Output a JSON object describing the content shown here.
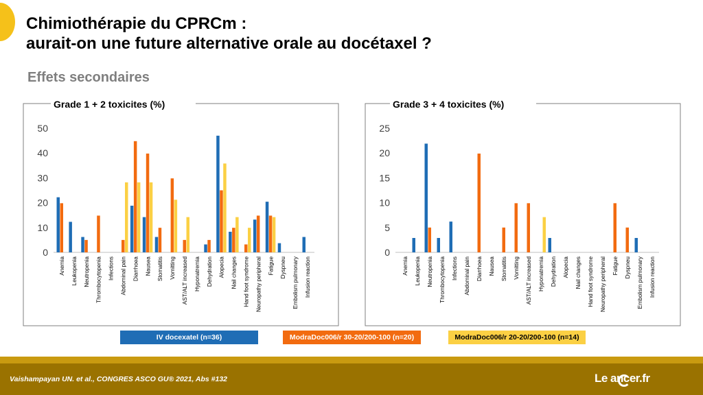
{
  "slide": {
    "title_line1": "Chimiothérapie du CPRCm :",
    "title_line2": "aurait-on une future alternative orale au docétaxel ?",
    "subtitle": "Effets secondaires",
    "citation": "Vaishampayan UN. et al., CONGRES ASCO GU® 2021, Abs #132",
    "logo": "Le   ancer.fr"
  },
  "legend": [
    {
      "label": "IV docexatel (n=36)",
      "color": "#1f6db5"
    },
    {
      "label": "ModraDoc006/r 30-20/200-100 (n=20)",
      "color": "#f26b10"
    },
    {
      "label": "ModraDoc006/r 20-20/200-100 (n=14)",
      "color": "#fbd044"
    }
  ],
  "chart_data": [
    {
      "type": "bar",
      "title": "Grade 1 + 2 toxicites (%)",
      "ylim": [
        0,
        50
      ],
      "yticks": [
        0,
        10,
        20,
        30,
        40,
        50
      ],
      "categories": [
        "Anemia",
        "Leukopenia",
        "Neutropenia",
        "Thrombocytopenia",
        "Infections",
        "Abdominal pain",
        "Diarrhoea",
        "Nausea",
        "Stomatitis",
        "Vomitting",
        "AST/ALT increased",
        "Hyponatremia",
        "Dehydration",
        "Alopecia",
        "Nail changes",
        "Hand foot syndrome",
        "Neuropathy peripheral",
        "Fatigue",
        "Dyspneu",
        "Embolism pulmonary",
        "Infusion reaction"
      ],
      "series": [
        {
          "name": "IV docexatel (n=36)",
          "color": "#1f6db5",
          "values": [
            22.2,
            12.3,
            6.2,
            0,
            0,
            0,
            18.8,
            14.2,
            6.2,
            0,
            0,
            0,
            3.2,
            47,
            8.3,
            0,
            13.2,
            20.4,
            3.7,
            0,
            6.2
          ]
        },
        {
          "name": "ModraDoc006/r 30-20/200-100 (n=20)",
          "color": "#f26b10",
          "values": [
            19.8,
            0,
            5,
            14.8,
            0,
            5,
            44.8,
            39.8,
            9.9,
            29.8,
            5,
            0,
            5,
            25,
            9.9,
            3.2,
            14.8,
            14.8,
            0,
            0,
            0
          ]
        },
        {
          "name": "ModraDoc006/r 20-20/200-100 (n=14)",
          "color": "#fbd044",
          "values": [
            0,
            0,
            0,
            0,
            0,
            28.2,
            28.2,
            28.2,
            0,
            21.2,
            14.2,
            0,
            0,
            35.8,
            14.2,
            9.9,
            0,
            14.2,
            0,
            0,
            0
          ]
        }
      ]
    },
    {
      "type": "bar",
      "title": "Grade 3 + 4 toxicites (%)",
      "ylim": [
        0,
        25
      ],
      "yticks": [
        0,
        5,
        10,
        15,
        20,
        25
      ],
      "categories": [
        "Anemia",
        "Leukopenia",
        "Neutropenia",
        "Thrombocytopenia",
        "Infections",
        "Abdominal pain",
        "Diarrhoea",
        "Nausea",
        "Stomatitis",
        "Vomitting",
        "AST/ALT increased",
        "Hyponatremia",
        "Dehydration",
        "Alopecia",
        "Nail changes",
        "Hand foot syndrome",
        "Neuropathy peripheral",
        "Fatigue",
        "Dyspneu",
        "Embolism pulmonary",
        "Infusion reaction"
      ],
      "series": [
        {
          "name": "IV docexatel (n=36)",
          "color": "#1f6db5",
          "values": [
            0,
            2.9,
            21.9,
            2.9,
            6.2,
            0,
            0,
            0,
            0,
            0,
            0,
            0,
            2.9,
            0,
            0,
            0,
            0,
            0,
            0,
            2.9,
            0
          ]
        },
        {
          "name": "ModraDoc006/r 30-20/200-100 (n=20)",
          "color": "#f26b10",
          "values": [
            0,
            0,
            5,
            0,
            0,
            0,
            19.9,
            0,
            5,
            9.9,
            9.9,
            0,
            0,
            0,
            0,
            0,
            0,
            9.9,
            5,
            0,
            0
          ]
        },
        {
          "name": "ModraDoc006/r 20-20/200-100 (n=14)",
          "color": "#fbd044",
          "values": [
            0,
            0,
            0,
            0,
            0,
            0,
            0,
            0,
            0,
            0,
            0,
            7.1,
            0,
            0,
            0,
            0,
            0,
            0,
            0,
            0,
            0
          ]
        }
      ]
    }
  ]
}
